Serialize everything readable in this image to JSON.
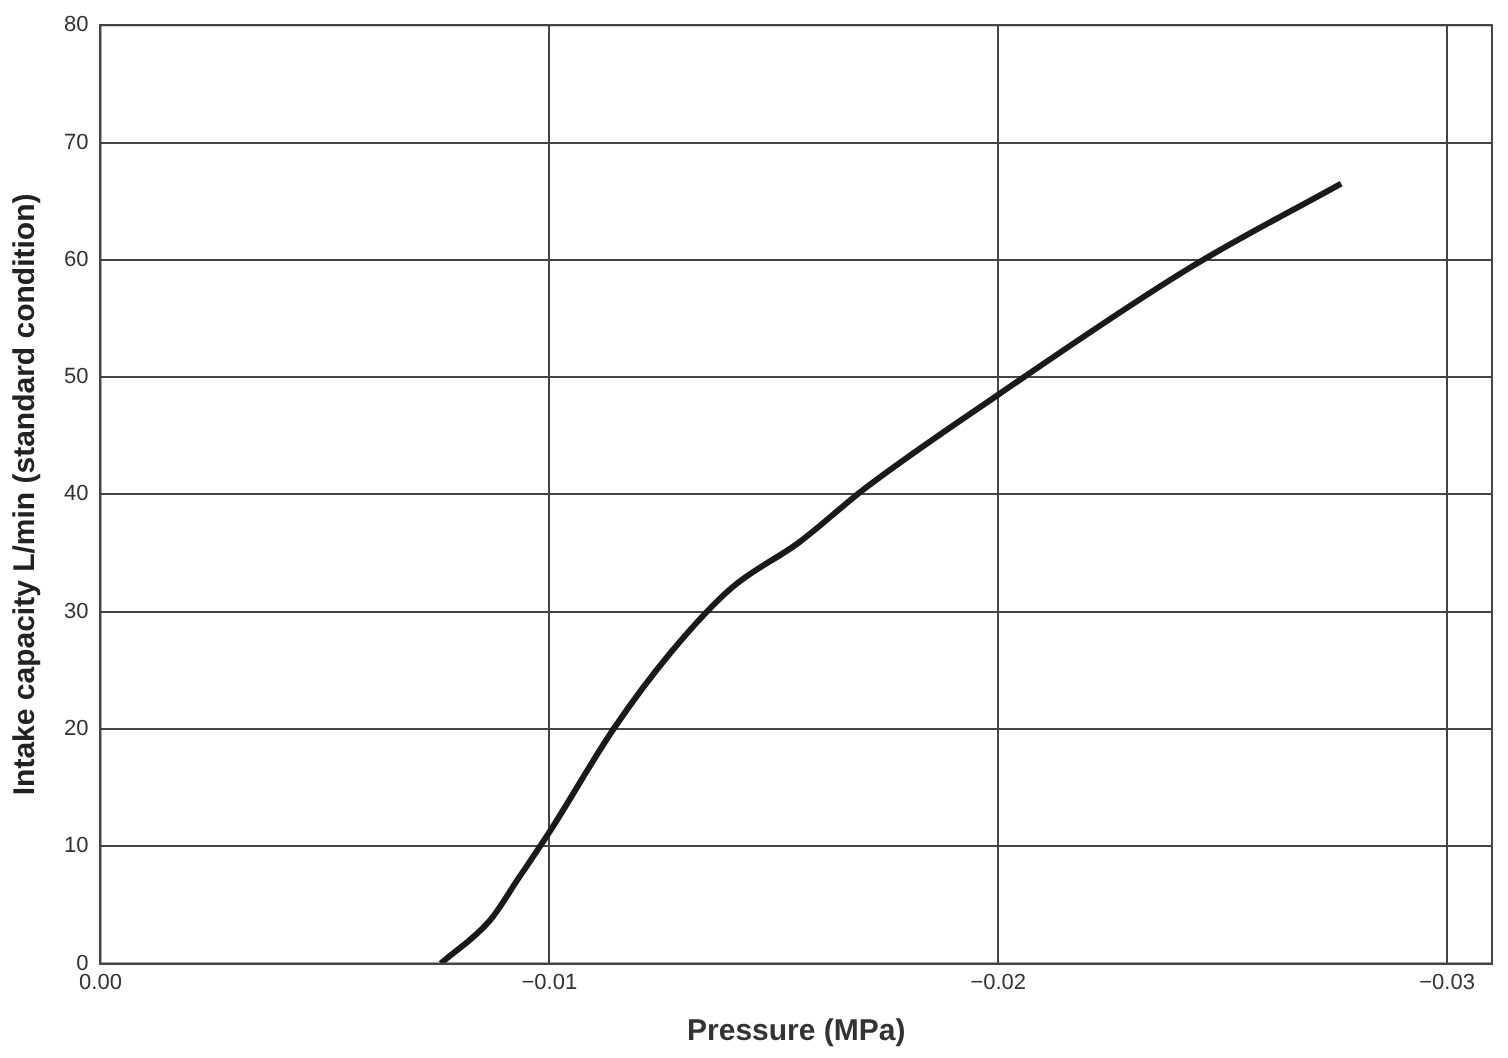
{
  "chart_data": {
    "type": "line",
    "xlabel": "Pressure (MPa)",
    "ylabel": "Intake capacity L/min (standard condition)",
    "x": [
      -0.00758,
      -0.00868,
      -0.0093,
      -0.01,
      -0.01143,
      -0.0127,
      -0.01405,
      -0.01556,
      -0.01706,
      -0.02,
      -0.02426,
      -0.02764
    ],
    "series": [
      {
        "color": "#1a1a1a",
        "values": [
          0,
          3.7,
          7.2,
          11.2,
          20.0,
          26.5,
          32.0,
          35.9,
          40.6,
          48.5,
          59.3,
          66.5
        ]
      }
    ],
    "xlim": [
      0,
      -0.031
    ],
    "xticks": [
      {
        "value": 0,
        "label": "0.00"
      },
      {
        "value": -0.01,
        "label": "−0.01"
      },
      {
        "value": -0.02,
        "label": "−0.02"
      },
      {
        "value": -0.03,
        "label": "−0.03"
      }
    ],
    "ylim": [
      0,
      80
    ],
    "yticks": [
      0,
      10,
      20,
      30,
      40,
      50,
      60,
      70,
      80
    ],
    "grid": true,
    "legend": false,
    "marker": "none",
    "line_style": "solid"
  }
}
